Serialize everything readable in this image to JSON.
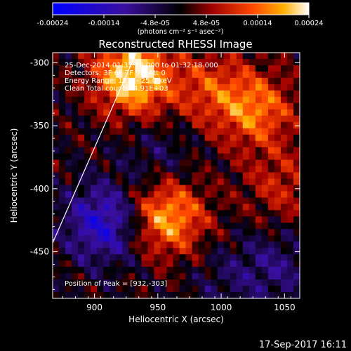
{
  "chart_data": {
    "type": "heatmap",
    "title": "Reconstructed RHESSI Image",
    "xlabel": "Heliocentric X (arcsec)",
    "ylabel": "Heliocentric Y (arcsec)",
    "xlim": [
      867,
      1062
    ],
    "ylim": [
      -487,
      -292
    ],
    "x_ticks": [
      900,
      950,
      1000,
      1050
    ],
    "y_ticks": [
      -300,
      -350,
      -400,
      -450
    ],
    "grid": false,
    "colorbar": {
      "position": "top",
      "range": [
        -0.00024,
        0.00024
      ],
      "tick_labels": [
        "-0.00024",
        "-0.00014",
        "-4.8e-05",
        "4.8e-05",
        "0.00014",
        "0.00024"
      ],
      "units_label": "(photons cm⁻² s⁻¹ asec⁻²)"
    },
    "annotations": [
      "25-Dec-2014 01:32:18.000 to 01:32:18.000",
      "Detectors: 3F 6F 7F 9F, Att 0",
      "Energy Range: 12.0 - 25.0 keV",
      "Clean     Total counts: 4.91E+03",
      "Position of Peak = [932,-303]"
    ],
    "peak": {
      "x": 932,
      "y": -303
    },
    "limb_line": {
      "x": [
        867,
        933
      ],
      "y": [
        -443,
        -292
      ]
    },
    "sources": [
      {
        "x": 928,
        "y": -308,
        "amplitude": 0.00024
      },
      {
        "x": 955,
        "y": -420,
        "amplitude": 0.00019
      },
      {
        "x": 1025,
        "y": -335,
        "amplitude": 0.00015
      },
      {
        "x": 988,
        "y": -318,
        "amplitude": 0.0001
      },
      {
        "x": 1045,
        "y": -395,
        "amplitude": 8e-05
      },
      {
        "x": 905,
        "y": -425,
        "amplitude": -0.00016
      },
      {
        "x": 948,
        "y": -372,
        "amplitude": -5e-05
      },
      {
        "x": 1040,
        "y": -460,
        "amplitude": -7e-05
      },
      {
        "x": 1000,
        "y": -470,
        "amplitude": -4e-05
      }
    ]
  },
  "footer": {
    "timestamp": "17-Sep-2017 16:11"
  }
}
